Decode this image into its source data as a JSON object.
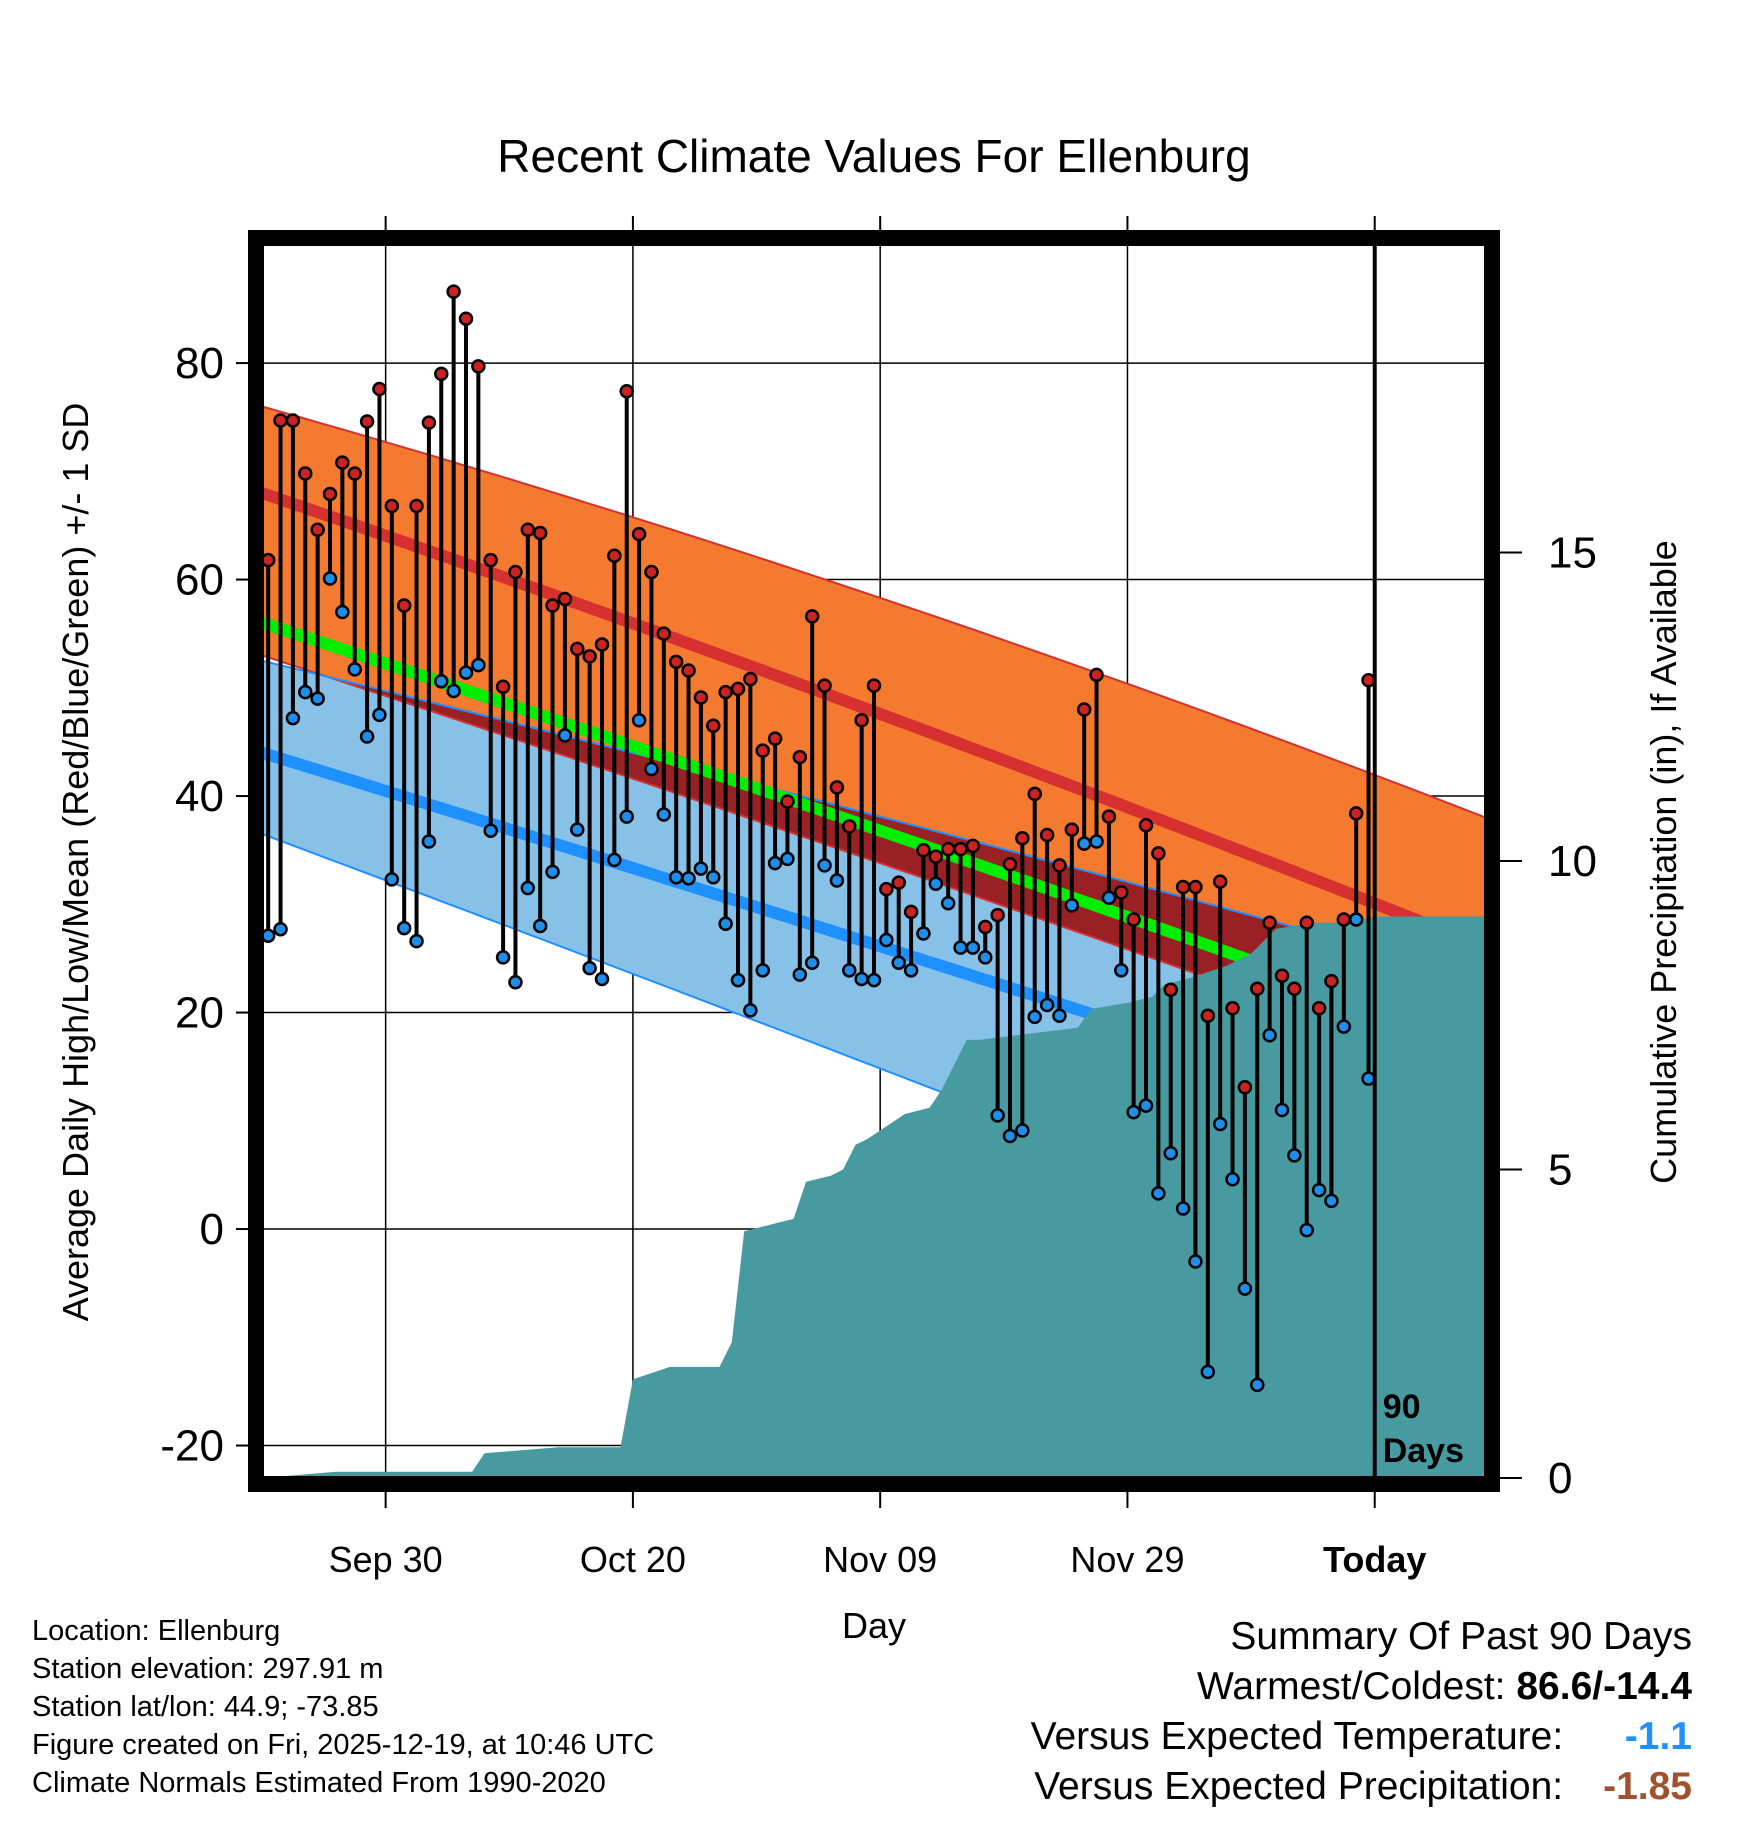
{
  "chart_data": {
    "type": "line",
    "title": "Recent Climate Values For Ellenburg",
    "xlabel": "Day",
    "ylabel_left": "Average Daily High/Low/Mean (Red/Blue/Green) +/- 1 SD",
    "ylabel_right": "Cumulative Precipitation (in), If Available",
    "x_range_days": [
      -90,
      9
    ],
    "ylim_left": [
      -23,
      91
    ],
    "ylim_right": [
      0,
      20
    ],
    "x_ticks": [
      {
        "day": -80,
        "label": "Sep 30"
      },
      {
        "day": -60,
        "label": "Oct 20"
      },
      {
        "day": -40,
        "label": "Nov 09"
      },
      {
        "day": -20,
        "label": "Nov 29"
      },
      {
        "day": 0,
        "label": "Today",
        "bold": true
      }
    ],
    "y_ticks_left": [
      -20,
      0,
      20,
      40,
      60,
      80
    ],
    "y_ticks_right": [
      0,
      5,
      10,
      15
    ],
    "today_label": [
      "90",
      "Days"
    ],
    "normals": {
      "high_mean": [
        68,
        26
      ],
      "high_upper": [
        76,
        38
      ],
      "high_lower": [
        53,
        14
      ],
      "low_mean": [
        44,
        8
      ],
      "low_upper": [
        52.5,
        23
      ],
      "low_lower": [
        36.5,
        -7
      ],
      "mean": [
        56,
        17
      ]
    },
    "daily_highs": [
      61.8,
      74.7,
      74.7,
      69.8,
      64.6,
      67.9,
      70.8,
      69.8,
      74.6,
      77.6,
      66.8,
      57.6,
      66.8,
      74.5,
      79.0,
      86.6,
      84.1,
      79.7,
      61.8,
      50.1,
      60.7,
      64.6,
      64.3,
      57.6,
      58.2,
      53.6,
      52.9,
      54.0,
      62.2,
      77.4,
      64.2,
      60.7,
      55.0,
      52.4,
      51.6,
      49.1,
      46.5,
      49.6,
      49.9,
      50.8,
      44.2,
      45.3,
      39.5,
      43.6,
      56.6,
      50.2,
      40.8,
      37.2,
      47.0,
      50.2,
      31.4,
      32.0,
      29.3,
      35.0,
      34.4,
      35.1,
      35.1,
      35.4,
      27.9,
      29.0,
      33.7,
      36.1,
      40.2,
      36.4,
      33.6,
      36.9,
      48.0,
      51.2,
      38.1,
      31.1,
      28.6,
      37.3,
      34.7,
      22.1,
      31.6,
      31.6,
      19.7,
      32.1,
      20.4,
      13.1,
      22.2,
      28.3,
      23.4,
      22.2,
      28.3,
      20.4,
      22.9,
      28.6,
      38.4,
      50.7
    ],
    "daily_lows": [
      27.1,
      27.7,
      47.2,
      49.6,
      49.0,
      60.1,
      57.0,
      51.7,
      45.5,
      47.5,
      32.3,
      27.8,
      26.6,
      35.8,
      50.6,
      49.7,
      51.4,
      52.1,
      36.8,
      25.1,
      22.8,
      31.5,
      28.0,
      33.0,
      45.6,
      36.9,
      24.1,
      23.1,
      34.1,
      38.1,
      47.0,
      42.5,
      38.3,
      32.5,
      32.4,
      33.3,
      32.5,
      28.2,
      23.0,
      20.2,
      23.9,
      33.8,
      34.2,
      23.5,
      24.6,
      33.6,
      32.2,
      23.9,
      23.1,
      23.0,
      26.7,
      24.6,
      23.9,
      27.3,
      31.9,
      30.1,
      26.0,
      26.0,
      25.1,
      10.5,
      8.6,
      9.1,
      19.6,
      20.7,
      19.7,
      29.9,
      35.6,
      35.8,
      30.6,
      23.9,
      10.8,
      11.4,
      3.3,
      7.0,
      1.9,
      -3.0,
      -13.2,
      9.7,
      4.6,
      -5.5,
      -14.4,
      17.9,
      11.0,
      6.8,
      -0.1,
      3.6,
      2.6,
      18.7,
      28.6,
      13.9
    ],
    "cumulative_precip": [
      [
        -90,
        0
      ],
      [
        -84,
        0.1
      ],
      [
        -78,
        0.1
      ],
      [
        -73,
        0.1
      ],
      [
        -72,
        0.4
      ],
      [
        -66,
        0.5
      ],
      [
        -61,
        0.5
      ],
      [
        -60,
        1.6
      ],
      [
        -57,
        1.8
      ],
      [
        -53,
        1.8
      ],
      [
        -52,
        2.2
      ],
      [
        -51,
        4.0
      ],
      [
        -49,
        4.1
      ],
      [
        -47,
        4.2
      ],
      [
        -46,
        4.8
      ],
      [
        -44,
        4.9
      ],
      [
        -43,
        5.0
      ],
      [
        -42,
        5.4
      ],
      [
        -41,
        5.5
      ],
      [
        -38,
        5.9
      ],
      [
        -36,
        6.0
      ],
      [
        -35,
        6.3
      ],
      [
        -33,
        7.1
      ],
      [
        -32,
        7.1
      ],
      [
        -28,
        7.2
      ],
      [
        -24,
        7.3
      ],
      [
        -23,
        7.6
      ],
      [
        -20,
        7.7
      ],
      [
        -18,
        7.8
      ],
      [
        -17,
        8.0
      ],
      [
        -15,
        8.1
      ],
      [
        -12,
        8.3
      ],
      [
        -10,
        8.5
      ],
      [
        -8,
        8.9
      ],
      [
        -5,
        9.0
      ],
      [
        -2,
        9.0
      ],
      [
        0,
        9.1
      ],
      [
        9,
        9.1
      ]
    ]
  },
  "footer": {
    "location": "Location: Ellenburg",
    "elevation": "Station elevation: 297.91 m",
    "latlon": "Station lat/lon: 44.9; -73.85",
    "created": "Figure created on Fri, 2025-12-19, at 10:46 UTC",
    "normals": "Climate Normals Estimated From 1990-2020"
  },
  "summary": {
    "heading": "Summary Of Past 90 Days",
    "warm_cold_label": "Warmest/Coldest:",
    "warm_cold_value": "86.6/-14.4",
    "temp_label": "Versus Expected Temperature:",
    "temp_value": "-1.1",
    "temp_color": "#1e90ff",
    "precip_label": "Versus Expected Precipitation:",
    "precip_value": "-1.85",
    "precip_color": "#a0522d"
  },
  "colors": {
    "high_band": "#f47a30",
    "high_line": "#d63031",
    "low_band": "#87c1e8",
    "low_line": "#1e90ff",
    "mean_line": "#00ee00",
    "overlap": "#9b1010",
    "precip": "#469aa0",
    "high_dot": "#cc2222",
    "low_dot": "#1e8ee8"
  }
}
